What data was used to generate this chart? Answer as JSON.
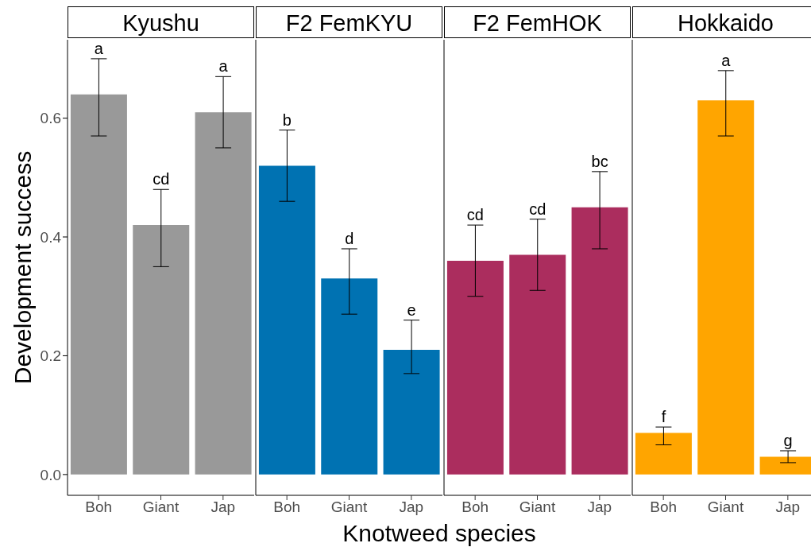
{
  "chart_data": [
    {
      "type": "bar",
      "title": "Kyushu",
      "xlabel": "Knotweed species",
      "ylabel": "Development success",
      "categories": [
        "Boh",
        "Giant",
        "Jap"
      ],
      "values": [
        0.64,
        0.42,
        0.61
      ],
      "errors": [
        [
          0.57,
          0.7
        ],
        [
          0.35,
          0.48
        ],
        [
          0.55,
          0.67
        ]
      ],
      "value_labels": [
        "a",
        "cd",
        "a"
      ],
      "color": "#999999",
      "ylim": [
        -0.035,
        0.732
      ],
      "yticks": [
        {
          "value": 0,
          "label": "0.0"
        },
        0.2,
        0.4,
        0.6
      ]
    },
    {
      "type": "bar",
      "title": "F2 FemKYU",
      "categories": [
        "Boh",
        "Giant",
        "Jap"
      ],
      "values": [
        0.52,
        0.33,
        0.21
      ],
      "errors": [
        [
          0.46,
          0.58
        ],
        [
          0.27,
          0.38
        ],
        [
          0.17,
          0.26
        ]
      ],
      "value_labels": [
        "b",
        "d",
        "e"
      ],
      "color": "#0072b2",
      "ylim": [
        -0.035,
        0.732
      ],
      "tick_labels": "x"
    },
    {
      "type": "bar",
      "title": "F2 FemHOK",
      "categories": [
        "Boh",
        "Giant",
        "Jap"
      ],
      "values": [
        0.36,
        0.37,
        0.45
      ],
      "errors": [
        [
          0.3,
          0.42
        ],
        [
          0.31,
          0.43
        ],
        [
          0.38,
          0.51
        ]
      ],
      "value_labels": [
        "cd",
        "cd",
        "bc"
      ],
      "color": "#ab2d5e",
      "ylim": [
        -0.035,
        0.732
      ],
      "tick_labels": "x"
    },
    {
      "type": "bar",
      "title": "Hokkaido",
      "categories": [
        "Boh",
        "Giant",
        "Jap"
      ],
      "values": [
        0.07,
        0.63,
        0.03
      ],
      "errors": [
        [
          0.05,
          0.08
        ],
        [
          0.57,
          0.68
        ],
        [
          0.02,
          0.04
        ]
      ],
      "value_labels": [
        "f",
        "a",
        "g"
      ],
      "color": "#ffa500",
      "ylim": [
        -0.035,
        0.732
      ],
      "tick_labels": "x"
    }
  ]
}
